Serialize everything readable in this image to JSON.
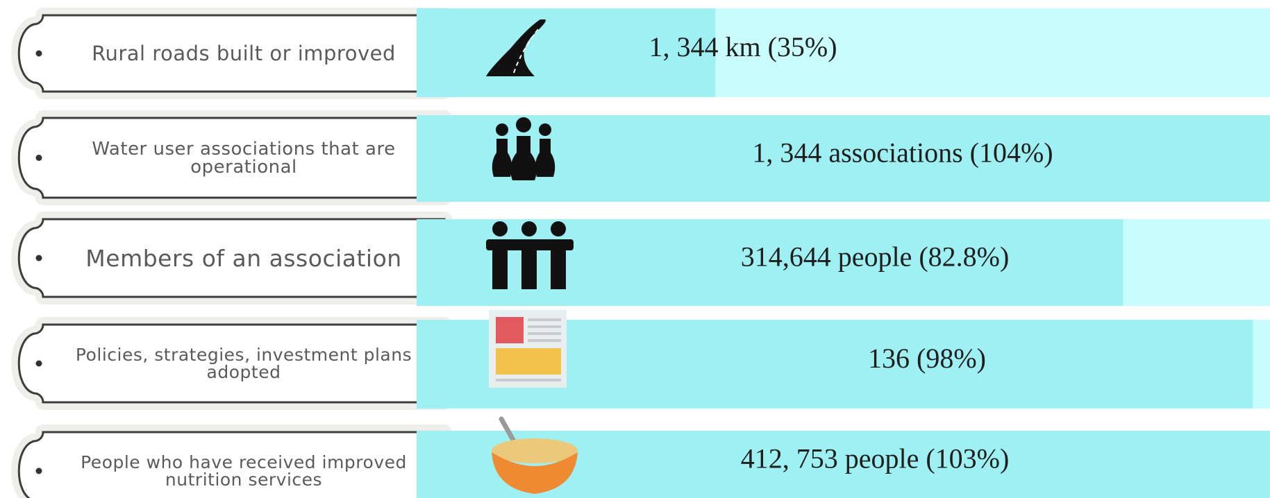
{
  "chart_data": {
    "type": "bar",
    "orientation": "horizontal",
    "categories": [
      "Rural roads built or improved",
      "Water user associations that are operational",
      "Members of an association",
      "Policies, strategies, investment plans adopted",
      "People who have received improved nutrition services"
    ],
    "values": [
      35,
      104,
      82.8,
      98,
      103
    ],
    "value_labels": [
      "1, 344 km (35%)",
      "1, 344 associations (104%)",
      "314,644 people (82.8%)",
      "136 (98%)",
      "412, 753 people (103%)"
    ],
    "color": "#9ff0f3",
    "track_color": "#c9fcfd",
    "xlim": [
      0,
      100
    ]
  }
}
